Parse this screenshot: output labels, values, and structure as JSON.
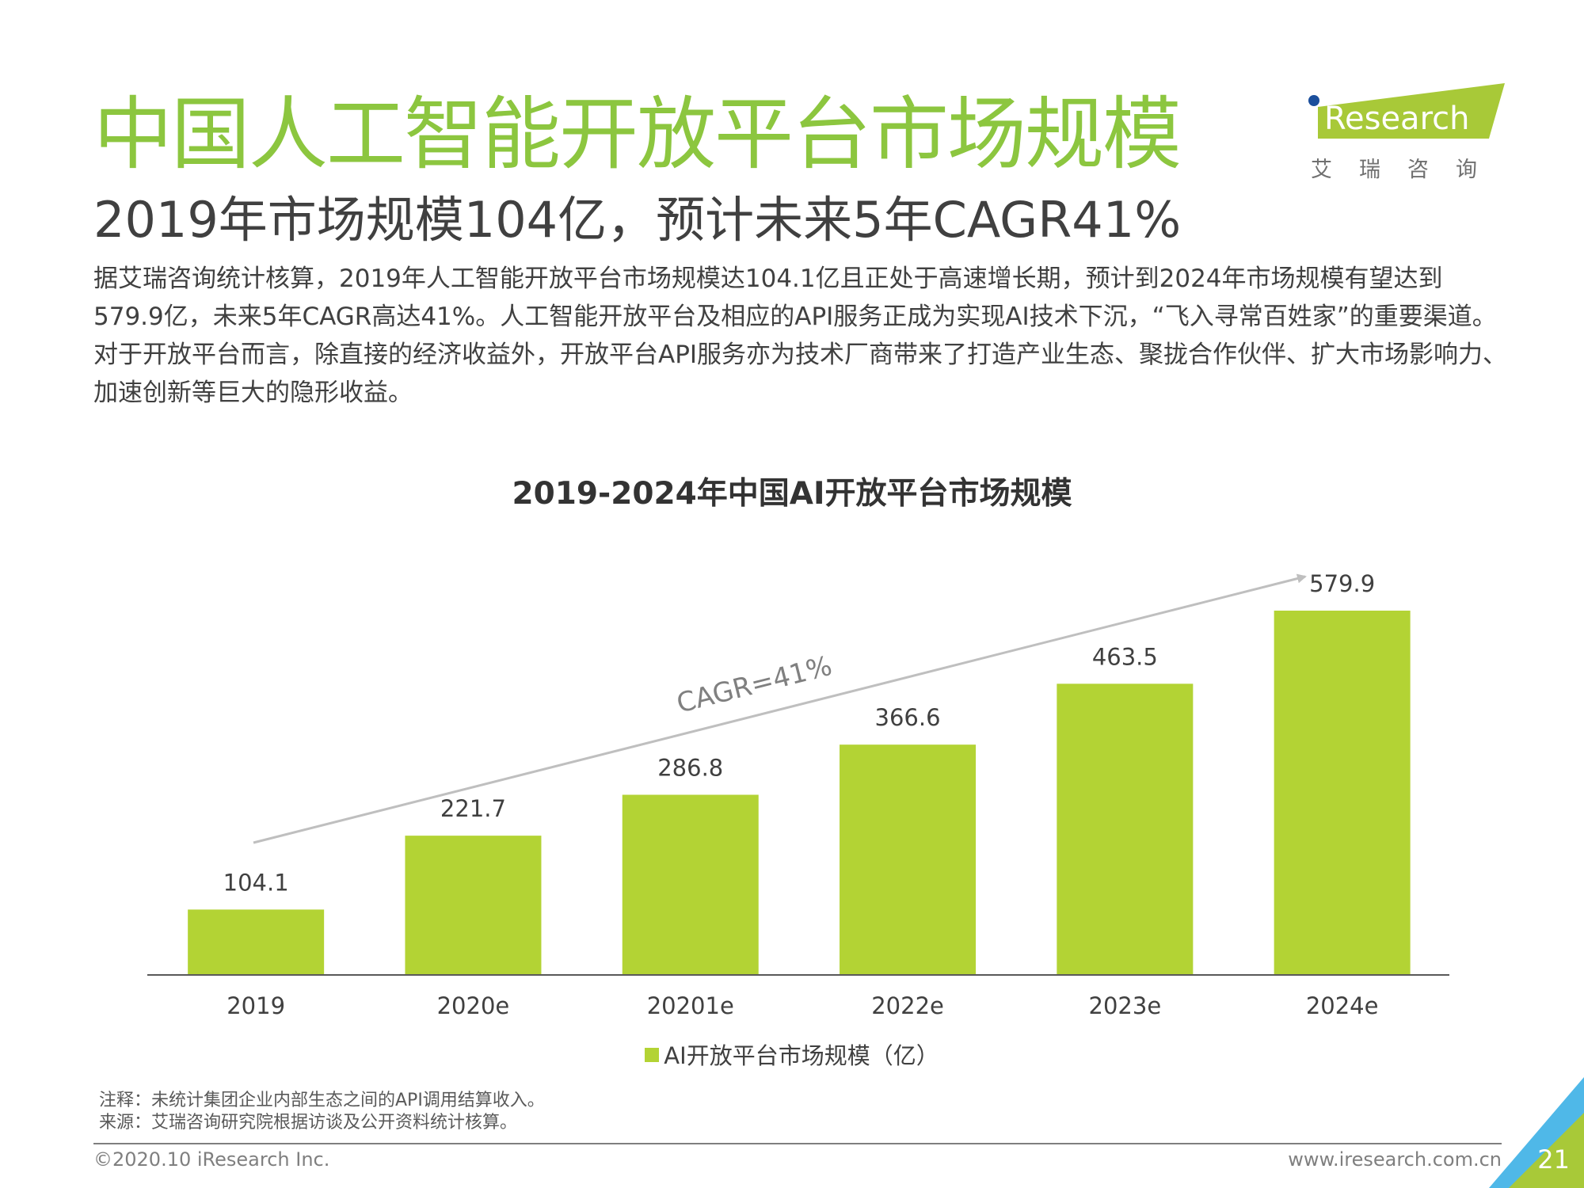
{
  "header": {
    "title": "中国人工智能开放平台市场规模",
    "subtitle": "2019年市场规模104亿，预计未来5年CAGR41%",
    "body": "据艾瑞咨询统计核算，2019年人工智能开放平台市场规模达104.1亿且正处于高速增长期，预计到2024年市场规模有望达到579.9亿，未来5年CAGR高达41%。人工智能开放平台及相应的API服务正成为实现AI技术下沉，“飞入寻常百姓家”的重要渠道。对于开放平台而言，除直接的经济收益外，开放平台API服务亦为技术厂商带来了打造产业生态、聚拢合作伙伴、扩大市场影响力、加速创新等巨大的隐形收益。"
  },
  "logo": {
    "brand_mark": "i",
    "brand_text": "Research",
    "brand_zh": "艾瑞咨询",
    "green": "#a8c938",
    "blue": "#1b4f9c"
  },
  "chart_data": {
    "type": "bar",
    "title": "2019-2024年中国AI开放平台市场规模",
    "categories": [
      "2019",
      "2020e",
      "20201e",
      "2022e",
      "2023e",
      "2024e"
    ],
    "series": [
      {
        "name": "AI开放平台市场规模（亿）",
        "values": [
          104.1,
          221.7,
          286.8,
          366.6,
          463.5,
          579.9
        ],
        "color": "#b3d334"
      }
    ],
    "value_labels": [
      "104.1",
      "221.7",
      "286.8",
      "366.6",
      "463.5",
      "579.9"
    ],
    "annotation": "CAGR=41%",
    "ylim": [
      0,
      579.9
    ],
    "grid": false,
    "legend_position": "bottom"
  },
  "footer": {
    "note": "注释：未统计集团企业内部生态之间的API调用结算收入。",
    "source": "来源：艾瑞咨询研究院根据访谈及公开资料统计核算。",
    "copyright": "©2020.10 iResearch Inc.",
    "website": "www.iresearch.com.cn",
    "page_number": "21"
  }
}
